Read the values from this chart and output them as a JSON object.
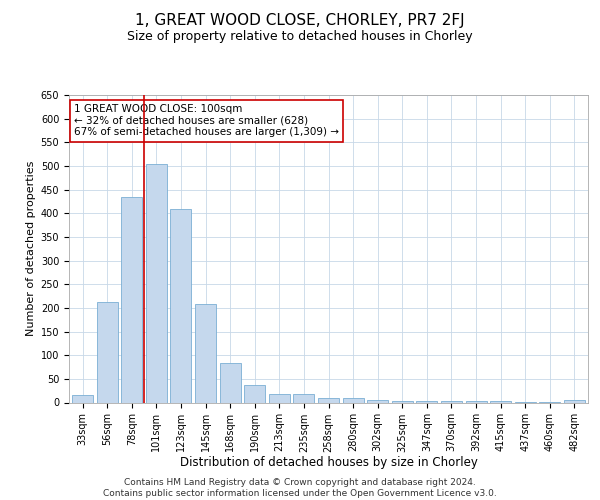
{
  "title": "1, GREAT WOOD CLOSE, CHORLEY, PR7 2FJ",
  "subtitle": "Size of property relative to detached houses in Chorley",
  "xlabel": "Distribution of detached houses by size in Chorley",
  "ylabel": "Number of detached properties",
  "categories": [
    "33sqm",
    "56sqm",
    "78sqm",
    "101sqm",
    "123sqm",
    "145sqm",
    "168sqm",
    "190sqm",
    "213sqm",
    "235sqm",
    "258sqm",
    "280sqm",
    "302sqm",
    "325sqm",
    "347sqm",
    "370sqm",
    "392sqm",
    "415sqm",
    "437sqm",
    "460sqm",
    "482sqm"
  ],
  "values": [
    15,
    212,
    435,
    505,
    408,
    208,
    83,
    38,
    18,
    18,
    10,
    10,
    5,
    3,
    3,
    3,
    3,
    3,
    1,
    1,
    5
  ],
  "bar_color": "#c5d8ed",
  "bar_edge_color": "#7bafd4",
  "highlight_bar_index": 3,
  "highlight_line_color": "#cc0000",
  "annotation_text": "1 GREAT WOOD CLOSE: 100sqm\n← 32% of detached houses are smaller (628)\n67% of semi-detached houses are larger (1,309) →",
  "annotation_box_color": "#ffffff",
  "annotation_box_edge_color": "#cc0000",
  "ylim": [
    0,
    650
  ],
  "yticks": [
    0,
    50,
    100,
    150,
    200,
    250,
    300,
    350,
    400,
    450,
    500,
    550,
    600,
    650
  ],
  "background_color": "#ffffff",
  "grid_color": "#c8d8e8",
  "footer_text": "Contains HM Land Registry data © Crown copyright and database right 2024.\nContains public sector information licensed under the Open Government Licence v3.0.",
  "title_fontsize": 11,
  "subtitle_fontsize": 9,
  "xlabel_fontsize": 8.5,
  "ylabel_fontsize": 8,
  "tick_fontsize": 7,
  "annotation_fontsize": 7.5,
  "footer_fontsize": 6.5
}
